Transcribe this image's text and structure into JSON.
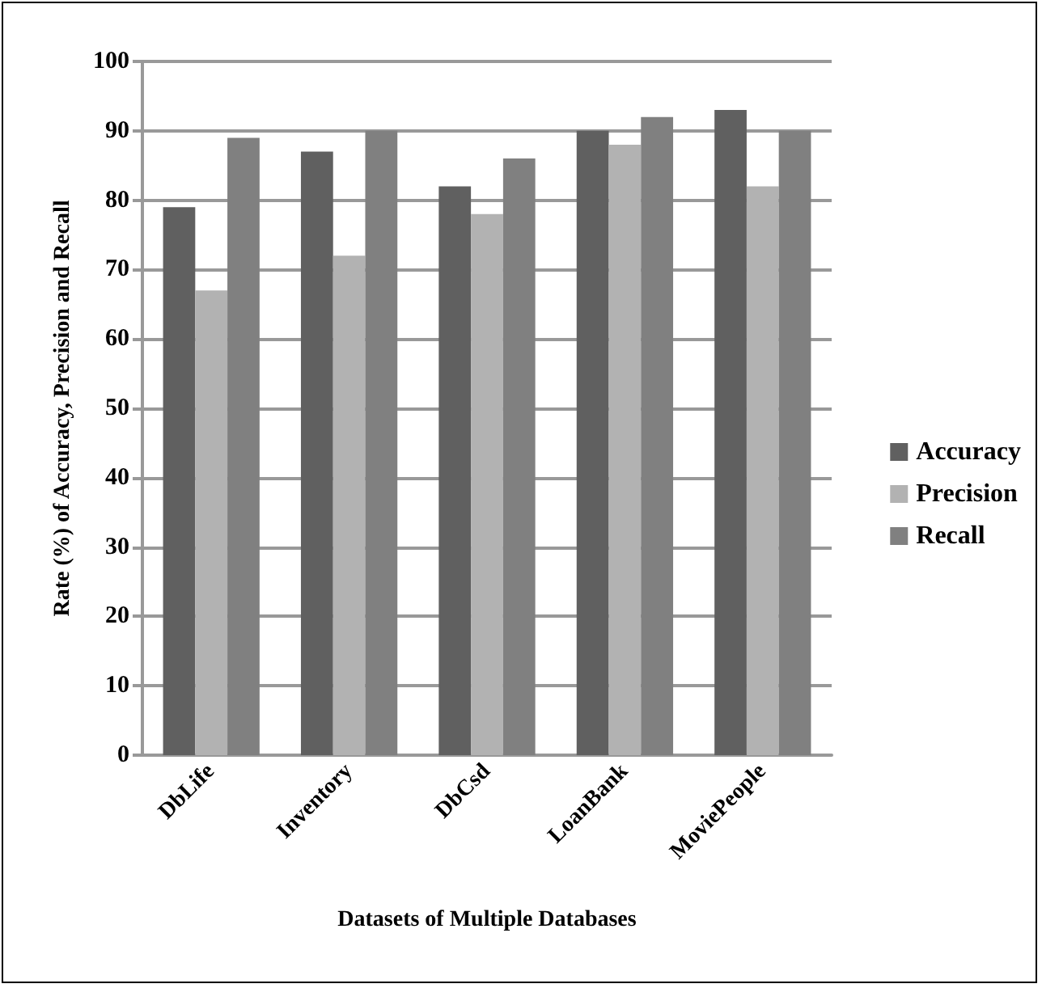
{
  "chart_data": {
    "type": "bar",
    "xlabel": "Datasets of Multiple Databases",
    "ylabel": "Rate (%) of Accuracy, Precision and Recall",
    "categories": [
      "DbLife",
      "Inventory",
      "DbCsd",
      "LoanBank",
      "MoviePeople"
    ],
    "series": [
      {
        "name": "Accuracy",
        "color": "#606060",
        "values": [
          79,
          87,
          82,
          90,
          93
        ]
      },
      {
        "name": "Precision",
        "color": "#b2b2b2",
        "values": [
          67,
          72,
          78,
          88,
          82
        ]
      },
      {
        "name": "Recall",
        "color": "#808080",
        "values": [
          89,
          90,
          86,
          92,
          90
        ]
      }
    ],
    "ylim": [
      0,
      100
    ],
    "yticks": [
      0,
      10,
      20,
      30,
      40,
      50,
      60,
      70,
      80,
      90,
      100
    ],
    "grid": "y",
    "legend": "right"
  }
}
